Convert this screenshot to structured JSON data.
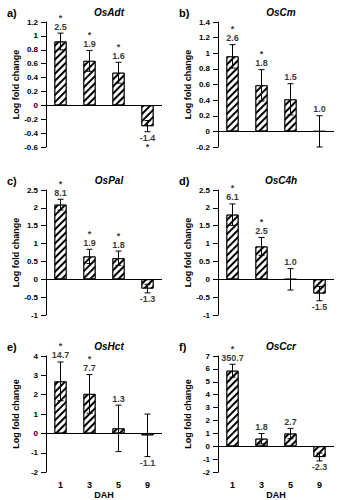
{
  "chart_data": [
    {
      "type": "bar",
      "panel": "a)",
      "title": "OsAdt",
      "y_label": "Log fold change",
      "categories": [
        1,
        3,
        5,
        9
      ],
      "values": [
        0.92,
        0.64,
        0.47,
        -0.3
      ],
      "error": [
        0.12,
        0.15,
        0.15,
        0.08
      ],
      "fold_change_labels": [
        "2.5",
        "1.9",
        "1.6",
        "-1.4"
      ],
      "significant": [
        true,
        true,
        true,
        true
      ],
      "significance_label": "*",
      "color": "#000000",
      "ylim": [
        -0.6,
        1.2
      ],
      "yticks": [
        -0.6,
        -0.4,
        -0.2,
        0,
        0.2,
        0.4,
        0.6,
        0.8,
        1,
        1.2
      ],
      "grid": false,
      "tick_labels": "y"
    },
    {
      "type": "bar",
      "panel": "b)",
      "title": "OsCm",
      "y_label": "Log fold change",
      "categories": [
        1,
        3,
        5,
        9
      ],
      "values": [
        0.96,
        0.59,
        0.41,
        0.0
      ],
      "error": [
        0.15,
        0.2,
        0.2,
        0.2
      ],
      "fold_change_labels": [
        "2.6",
        "1.8",
        "1.5",
        "1.0"
      ],
      "significant": [
        true,
        true,
        false,
        false
      ],
      "significance_label": "*",
      "color": "#000000",
      "ylim": [
        -0.2,
        1.4
      ],
      "yticks": [
        -0.2,
        0,
        0.2,
        0.4,
        0.6,
        0.8,
        1,
        1.2,
        1.4
      ],
      "grid": false,
      "tick_labels": "y"
    },
    {
      "type": "bar",
      "panel": "c)",
      "title": "OsPal",
      "y_label": "Log fold change",
      "categories": [
        1,
        3,
        5,
        9
      ],
      "values": [
        2.09,
        0.64,
        0.59,
        -0.26
      ],
      "error": [
        0.15,
        0.2,
        0.2,
        0.12
      ],
      "fold_change_labels": [
        "8.1",
        "1.9",
        "1.8",
        "-1.3"
      ],
      "significant": [
        true,
        true,
        true,
        false
      ],
      "significance_label": "*",
      "color": "#000000",
      "ylim": [
        -1,
        2.5
      ],
      "yticks": [
        -1,
        -0.5,
        0,
        0.5,
        1,
        1.5,
        2,
        2.5
      ],
      "grid": false,
      "tick_labels": "y"
    },
    {
      "type": "bar",
      "panel": "d)",
      "title": "OsC4h",
      "y_label": "Log fold change",
      "categories": [
        1,
        3,
        5,
        9
      ],
      "values": [
        1.81,
        0.92,
        0.0,
        -0.4
      ],
      "error": [
        0.3,
        0.25,
        0.3,
        0.2
      ],
      "fold_change_labels": [
        "6.1",
        "2.5",
        "1.0",
        "-1.5"
      ],
      "significant": [
        true,
        true,
        false,
        false
      ],
      "significance_label": "*",
      "color": "#000000",
      "ylim": [
        -1,
        2.5
      ],
      "yticks": [
        -1,
        -0.5,
        0,
        0.5,
        1,
        1.5,
        2,
        2.5
      ],
      "grid": false,
      "tick_labels": "y"
    },
    {
      "type": "bar",
      "panel": "e)",
      "title": "OsHct",
      "y_label": "Log fold change",
      "x_label": "DAH",
      "categories": [
        1,
        3,
        5,
        9
      ],
      "values": [
        2.69,
        2.04,
        0.26,
        -0.1
      ],
      "error": [
        1.0,
        1.0,
        1.2,
        1.1
      ],
      "fold_change_labels": [
        "14.7",
        "7.7",
        "1.3",
        "-1.1"
      ],
      "significant": [
        true,
        true,
        false,
        false
      ],
      "significance_label": "*",
      "color": "#000000",
      "ylim": [
        -2,
        4
      ],
      "yticks": [
        -2,
        -1,
        0,
        1,
        2,
        3,
        4
      ],
      "grid": false
    },
    {
      "type": "bar",
      "panel": "f)",
      "title": "OsCcr",
      "y_label": "Log fold change",
      "x_label": "DAH",
      "categories": [
        1,
        3,
        5,
        9
      ],
      "values": [
        5.86,
        0.59,
        0.99,
        -0.83
      ],
      "error": [
        0.5,
        0.4,
        0.4,
        0.3
      ],
      "fold_change_labels": [
        "350.7",
        "1.8",
        "2.7",
        "-2.3"
      ],
      "significant": [
        true,
        false,
        false,
        false
      ],
      "significance_label": "*",
      "color": "#000000",
      "ylim": [
        -2,
        7
      ],
      "yticks": [
        -2,
        -1,
        0,
        1,
        2,
        3,
        4,
        5,
        6,
        7
      ],
      "grid": false
    }
  ]
}
